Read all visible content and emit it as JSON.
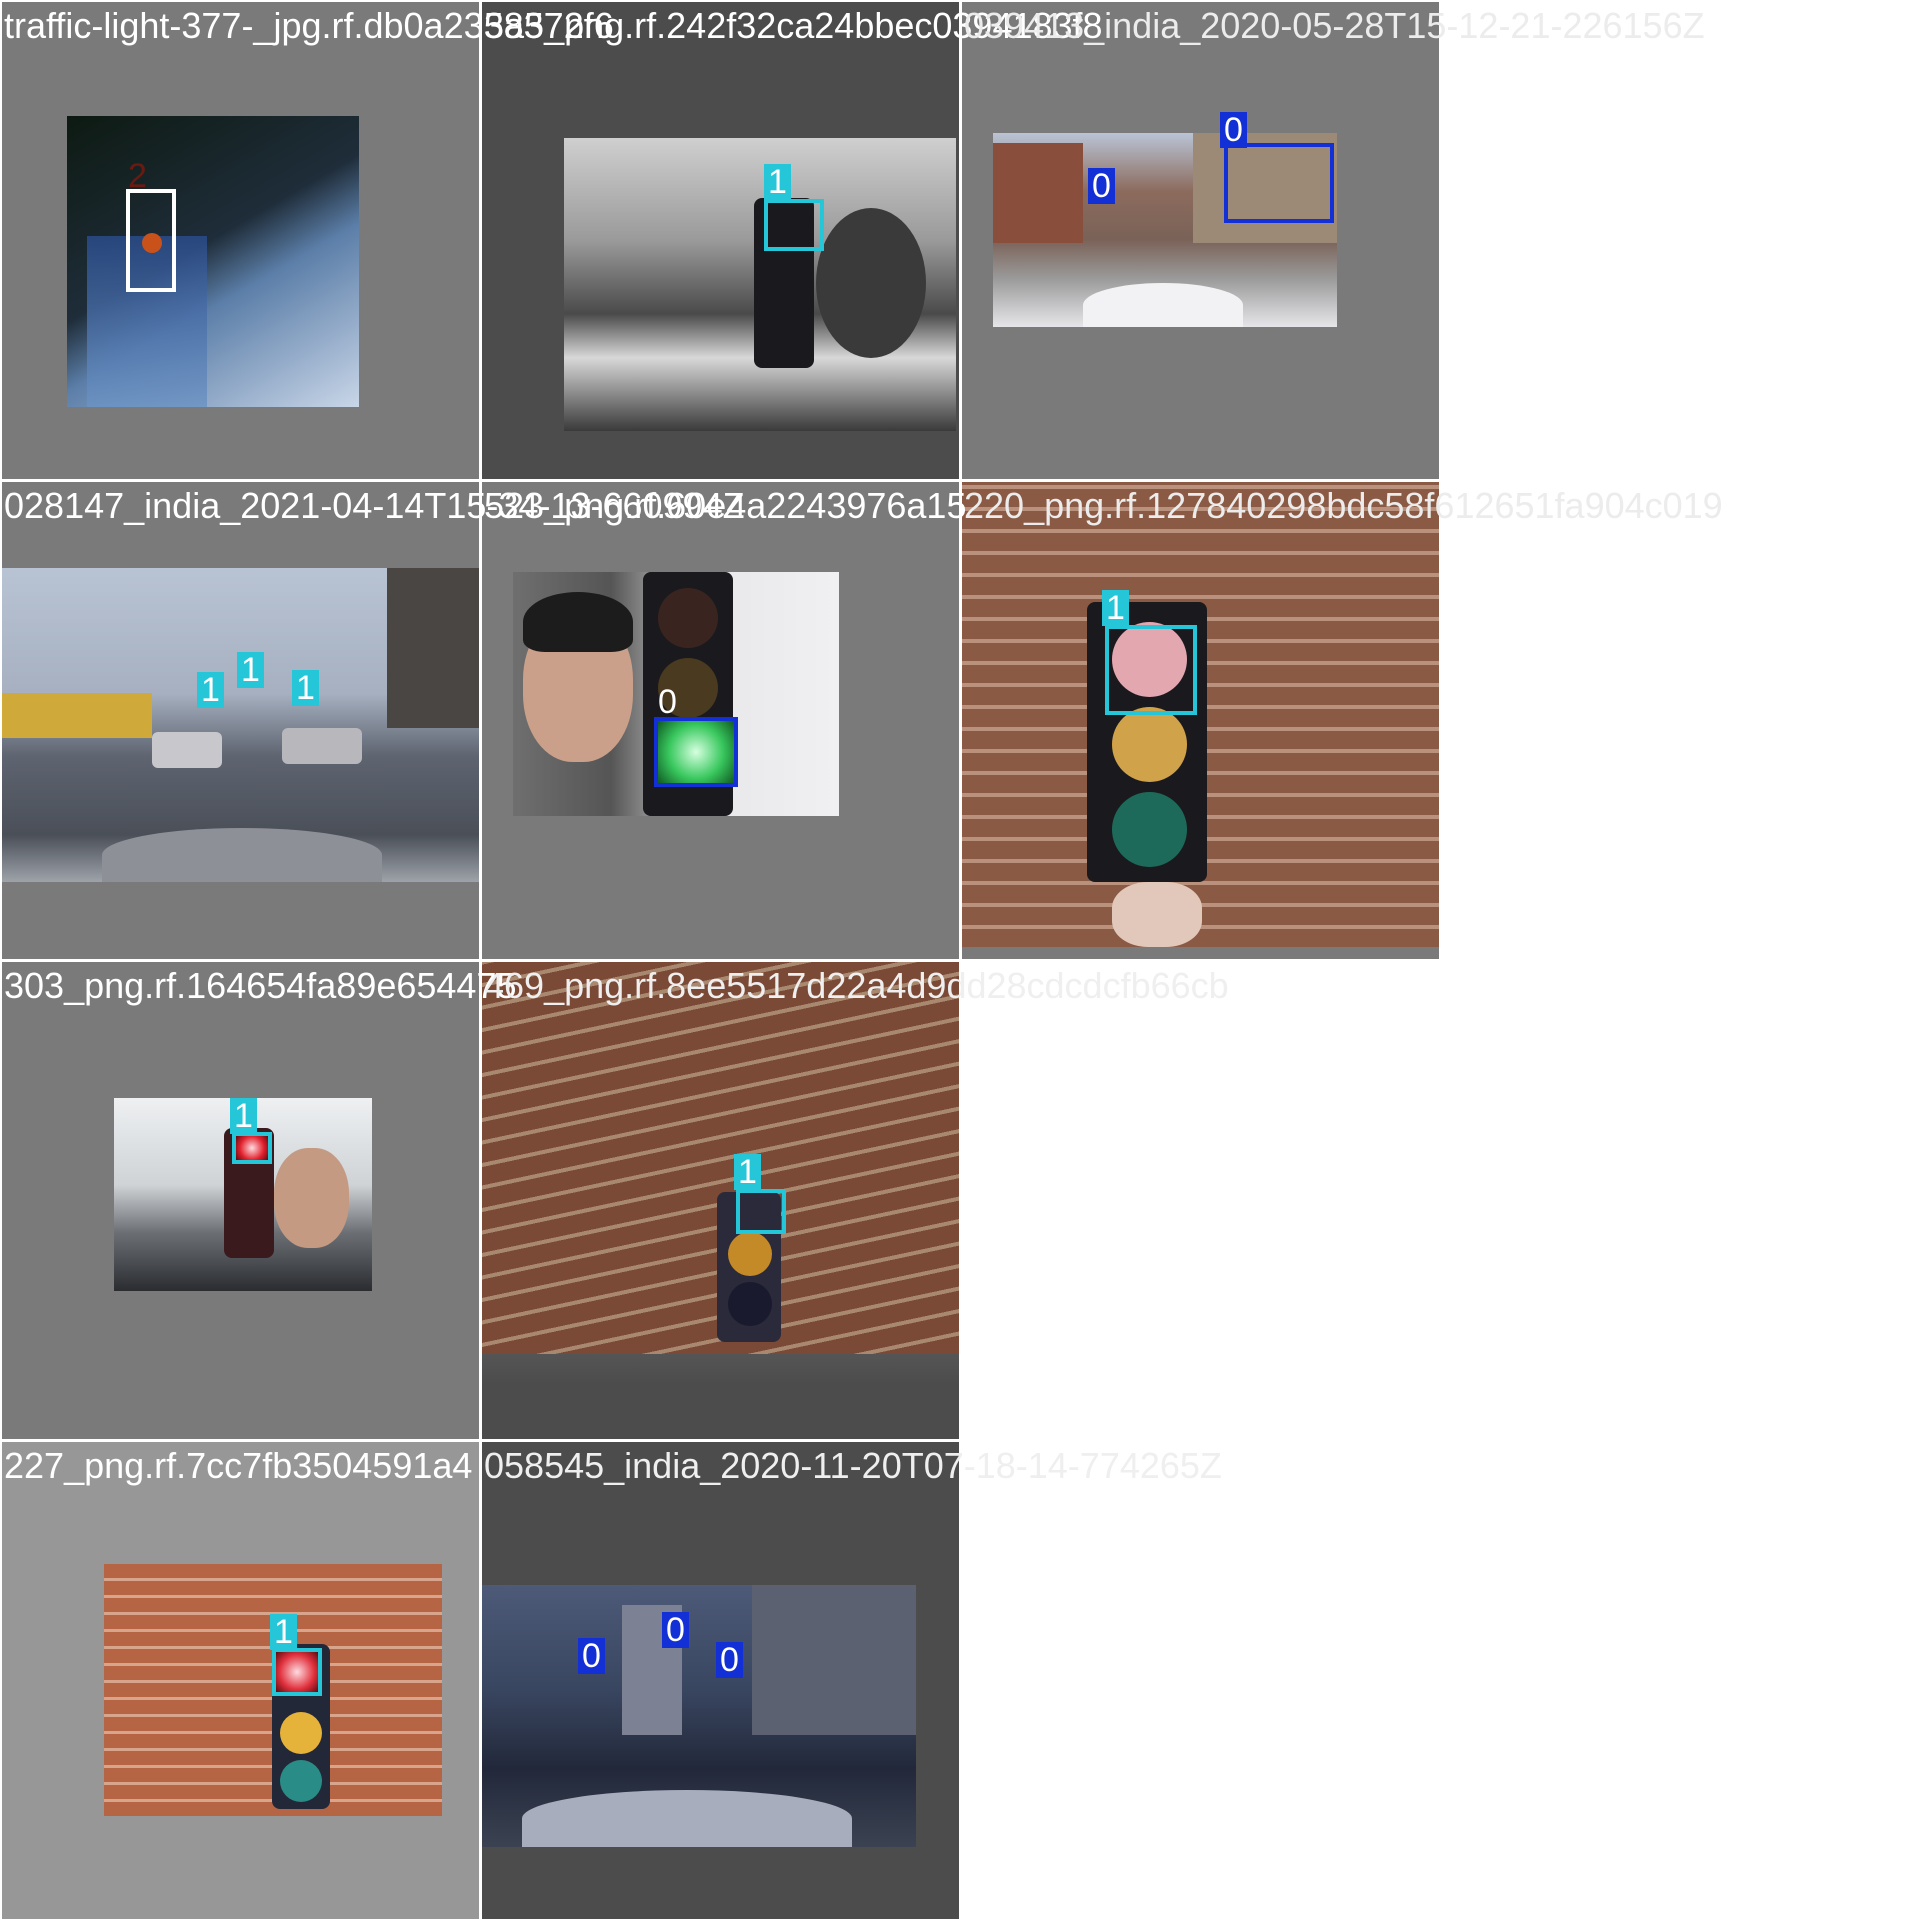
{
  "captions": [
    "traffic-light-377-_jpg.rf.db0a2358372f6",
    "3a5_png.rf.242f32ca24bbec0394183f8",
    "039413_india_2020-05-28T15-12-21-226156Z",
    "028147_india_2021-04-14T15-34-13-660994Z",
    "523_png.rf.60e4a2243976a15",
    "220_png.rf.127840298bdc58f612651fa904c019",
    "303_png.rf.164654fa89e654475",
    "469_png.rf.8ee5517d22a4d9dd28cdcdcfb66cb",
    "227_png.rf.7cc7fb3504591a4",
    "058545_india_2020-11-20T07-18-14-774265Z"
  ],
  "labels": {
    "t1": [
      "2"
    ],
    "t2": [
      "1"
    ],
    "t3": [
      "0",
      "0"
    ],
    "t4": [
      "1",
      "1",
      "1"
    ],
    "t5": [
      "0"
    ],
    "t6": [
      "1"
    ],
    "t7": [
      "1"
    ],
    "t8": [
      "1"
    ],
    "t9": [
      "1"
    ],
    "t10": [
      "0",
      "0",
      "0"
    ]
  },
  "class_colors": {
    "0": "#1330d6",
    "1": "#26c6d9",
    "2": "#ffffff"
  }
}
